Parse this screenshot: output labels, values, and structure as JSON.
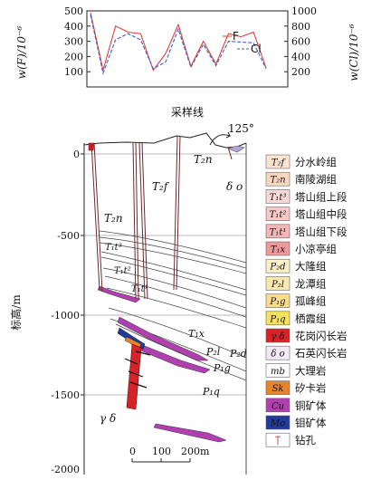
{
  "chart_data": {
    "type": "line",
    "xlabel": "采样线",
    "ylabel_left": "w(F)/10⁻⁶",
    "ylabel_right": "w(Cl)/10⁻⁶",
    "ylim_left": [
      0,
      500
    ],
    "ylim_right": [
      0,
      1000
    ],
    "y_ticks_left": [
      "100",
      "200",
      "300",
      "400",
      "500"
    ],
    "y_ticks_right": [
      "200",
      "400",
      "600",
      "800",
      "1000"
    ],
    "series": [
      {
        "name": "F",
        "axis": "left",
        "color": "#e0413a",
        "values": [
          490,
          110,
          400,
          360,
          350,
          110,
          220,
          410,
          135,
          300,
          150,
          350,
          330,
          360,
          125
        ]
      },
      {
        "name": "Cl",
        "axis": "right",
        "color": "#3b5fc8",
        "values": [
          950,
          180,
          620,
          700,
          620,
          240,
          330,
          760,
          260,
          560,
          280,
          600,
          590,
          580,
          240
        ]
      }
    ]
  },
  "section": {
    "azimuth": "125°",
    "ylabel": "标高/m",
    "depth_ticks": [
      "0",
      "-500",
      "-1000",
      "-1500",
      "-2000"
    ],
    "scale_ticks": [
      "0",
      "100",
      "200m"
    ],
    "labels": {
      "t2n_top": "T₂n",
      "t2f": "T₂f",
      "t2n_left": "T₂n",
      "t1t3": "T₁t³",
      "t1t2": "T₁t²",
      "t1t1": "T₁t¹",
      "t1x": "T₁x",
      "p2l": "P₂l",
      "p2d": "P₂d",
      "p1g": "P₁g",
      "p1q": "P₁q",
      "delta_o": "δ o",
      "gamma_delta": "γ δ"
    }
  },
  "legend": [
    {
      "code": "T₂f",
      "name": "分水岭组",
      "color": "#fde4d0",
      "code_color": "#111"
    },
    {
      "code": "T₂n",
      "name": "南陵湖组",
      "color": "#fcd7bf",
      "code_color": "#111"
    },
    {
      "code": "T₁t³",
      "name": "塔山组上段",
      "color": "#fbd9d9",
      "code_color": "#111"
    },
    {
      "code": "T₁t²",
      "name": "塔山组中段",
      "color": "#f8c8c8",
      "code_color": "#111"
    },
    {
      "code": "T₁t¹",
      "name": "塔山组下段",
      "color": "#f4b6b6",
      "code_color": "#111"
    },
    {
      "code": "T₁x",
      "name": "小凉亭组",
      "color": "#ee9a9a",
      "code_color": "#111"
    },
    {
      "code": "P₂d",
      "name": "大隆组",
      "color": "#fdf0c8",
      "code_color": "#111"
    },
    {
      "code": "P₂l",
      "name": "龙潭组",
      "color": "#fbe8b0",
      "code_color": "#111"
    },
    {
      "code": "P₁g",
      "name": "孤峰组",
      "color": "#f9dc8c",
      "code_color": "#111"
    },
    {
      "code": "P₁q",
      "name": "栖霞组",
      "color": "#f6e25a",
      "code_color": "#111"
    },
    {
      "code": "γ δ",
      "name": "花岗闪长岩",
      "color": "#d4242a",
      "code_color": "#ffffff"
    },
    {
      "code": "δ o",
      "name": "石英闪长岩",
      "color": "#f4e9f6",
      "code_color": "#111"
    },
    {
      "code": "mb",
      "name": "大理岩",
      "color": "#ffffff",
      "code_color": "#111"
    },
    {
      "code": "Sk",
      "name": "矽卡岩",
      "color": "#e8842a",
      "code_color": "#111"
    },
    {
      "code": "Cu",
      "name": "铜矿体",
      "color": "#b040b0",
      "code_color": "#ffffff"
    },
    {
      "code": "Mo",
      "name": "钼矿体",
      "color": "#223a9a",
      "code_color": "#ffffff"
    },
    {
      "code": "",
      "name": "钻孔",
      "color": "#ffffff",
      "code_color": "#111"
    }
  ]
}
